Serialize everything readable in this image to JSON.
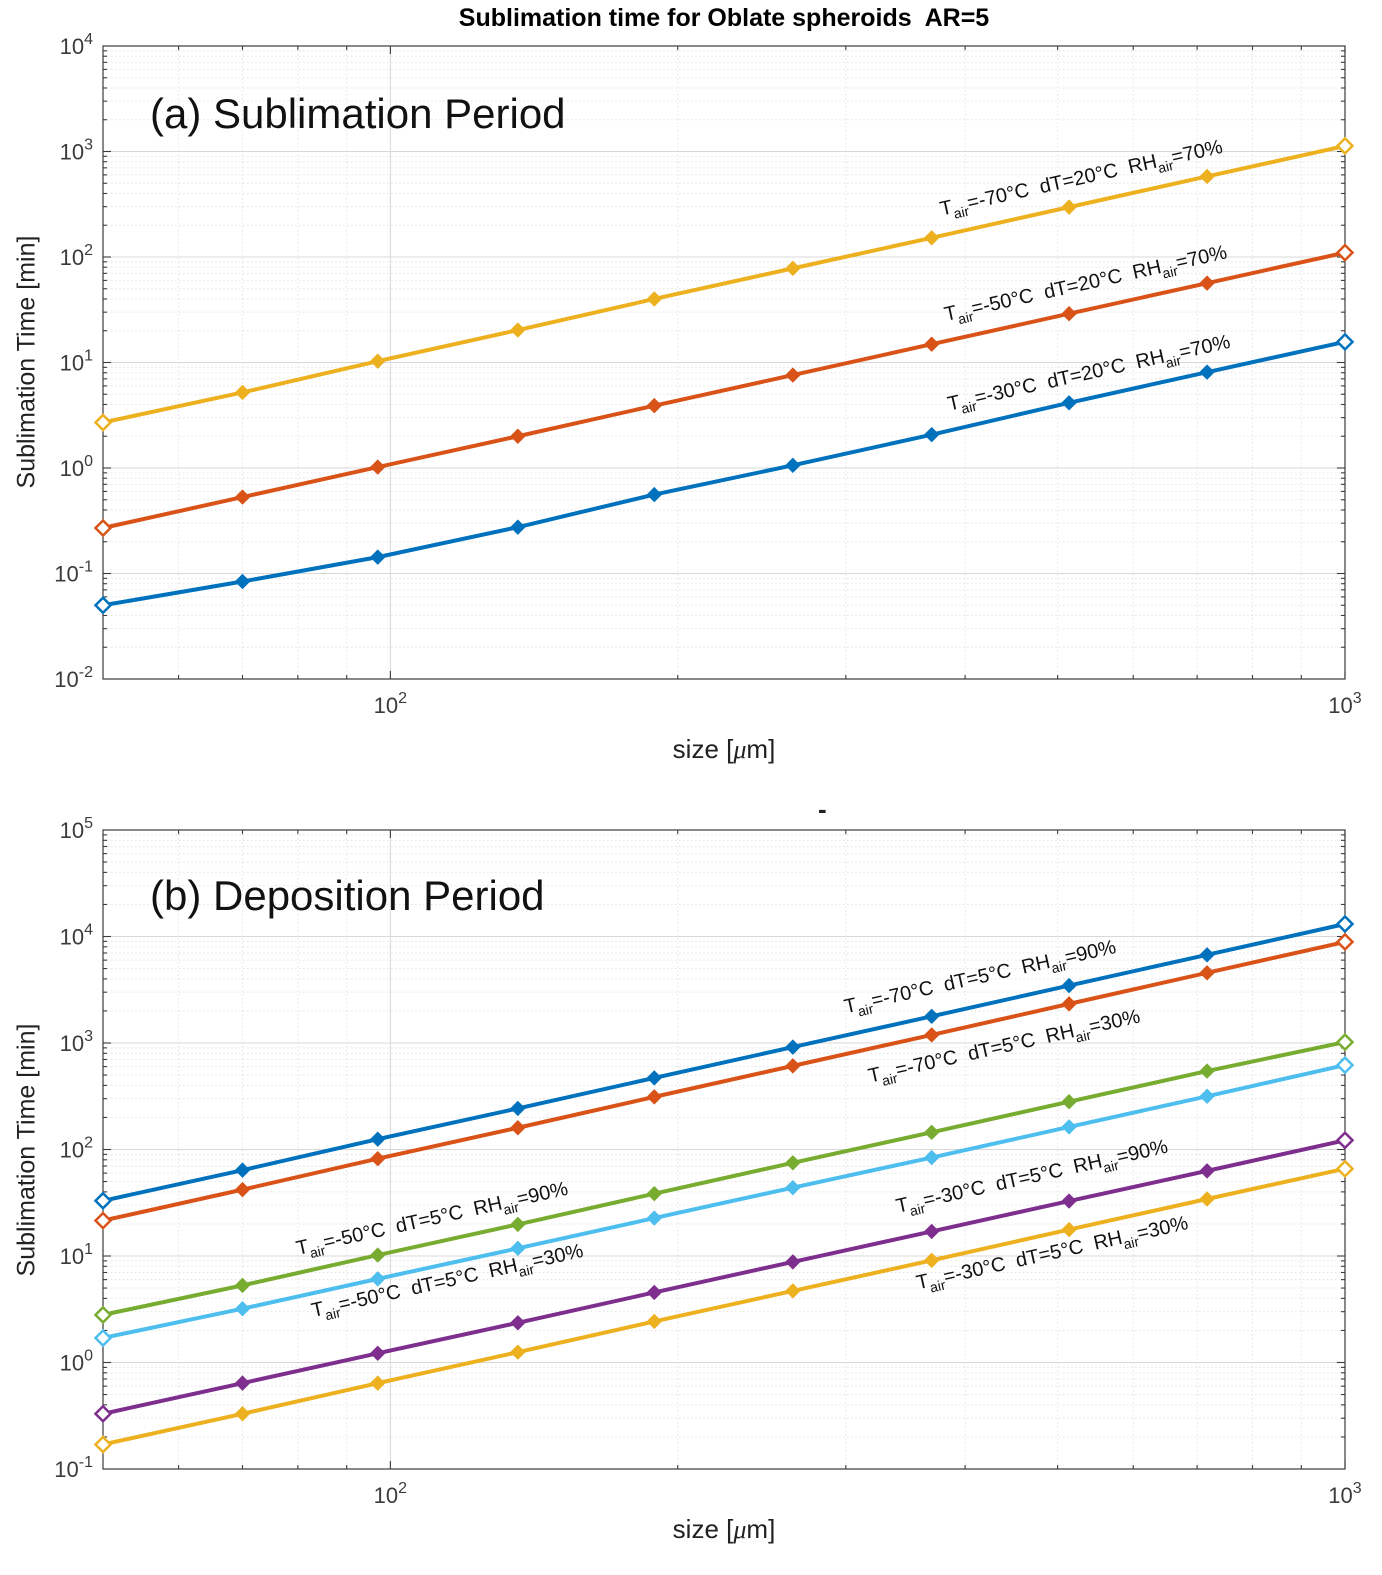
{
  "figure": {
    "title": "Sublimation time for Oblate spheroids  AR=5",
    "stray_mark": "-"
  },
  "chart_data": [
    {
      "type": "line",
      "panel_label": "(a) Sublimation Period",
      "title": "Sublimation time for Oblate spheroids  AR=5",
      "xlabel": "size [μm]",
      "ylabel": "Sublimation Time [min]",
      "x_scale": "log",
      "y_scale": "log",
      "xlim": [
        50,
        1000
      ],
      "ylim": [
        0.01,
        10000
      ],
      "x_tick_exponents": [
        2,
        3
      ],
      "y_tick_exponents": [
        4,
        3,
        2,
        1,
        0,
        -1,
        -2
      ],
      "grid": "major solid + minor dotted, box on, ticks in",
      "x": [
        50,
        70,
        97,
        136,
        189,
        264,
        369,
        514,
        717,
        1000
      ],
      "series": [
        {
          "label": "T_{air}=-70°C  dT=20°C  RH_{air}=70%",
          "color": "#EDB120",
          "values": [
            2.7,
            5.2,
            10.3,
            20.3,
            40,
            78,
            152,
            297,
            580,
            1130
          ],
          "label_at_x": 378,
          "label_offset": -20
        },
        {
          "label": "T_{air}=-50°C  dT=20°C  RH_{air}=70%",
          "color": "#D95319",
          "values": [
            0.27,
            0.53,
            1.02,
            2.0,
            3.9,
            7.6,
            14.9,
            29,
            56.5,
            110
          ],
          "label_at_x": 382,
          "label_offset": -20
        },
        {
          "label": "T_{air}=-30°C  dT=20°C  RH_{air}=70%",
          "color": "#0072BD",
          "values": [
            0.05,
            0.084,
            0.143,
            0.275,
            0.56,
            1.06,
            2.07,
            4.15,
            8.1,
            15.7
          ],
          "label_at_x": 385,
          "label_offset": -20
        }
      ]
    },
    {
      "type": "line",
      "panel_label": "(b) Deposition Period",
      "xlabel": "size [μm]",
      "ylabel": "Sublimation Time [min]",
      "x_scale": "log",
      "y_scale": "log",
      "xlim": [
        50,
        1000
      ],
      "ylim": [
        0.1,
        100000
      ],
      "x_tick_exponents": [
        2,
        3
      ],
      "y_tick_exponents": [
        5,
        4,
        3,
        2,
        1,
        0,
        -1
      ],
      "grid": "major solid + minor dotted, box on, ticks in",
      "x": [
        50,
        70,
        97,
        136,
        189,
        264,
        369,
        514,
        717,
        1000
      ],
      "series": [
        {
          "label": "T_{air}=-70°C  dT=5°C  RH_{air}=90%",
          "color": "#0072BD",
          "values": [
            33,
            64,
            125,
            243,
            470,
            915,
            1780,
            3460,
            6730,
            13100
          ],
          "label_at_x": 300,
          "label_offset": -22
        },
        {
          "label": "T_{air}=-70°C  dT=5°C  RH_{air}=30%",
          "color": "#D95319",
          "values": [
            21.5,
            42,
            82,
            160,
            312,
            610,
            1190,
            2330,
            4560,
            8900
          ],
          "label_at_x": 318,
          "label_offset": 34
        },
        {
          "label": "T_{air}=-50°C  dT=5°C  RH_{air}=90%",
          "color": "#77AC30",
          "values": [
            2.8,
            5.3,
            10.2,
            19.8,
            38.5,
            75,
            145,
            281,
            545,
            1020
          ],
          "label_at_x": 80,
          "label_offset": -18
        },
        {
          "label": "T_{air}=-50°C  dT=5°C  RH_{air}=30%",
          "color": "#4DBEEE",
          "values": [
            1.7,
            3.2,
            6.1,
            11.8,
            22.7,
            43.8,
            84,
            163,
            316,
            620
          ],
          "label_at_x": 83,
          "label_offset": 24
        },
        {
          "label": "T_{air}=-30°C  dT=5°C  RH_{air}=90%",
          "color": "#7E2F8E",
          "values": [
            0.33,
            0.64,
            1.22,
            2.36,
            4.55,
            8.8,
            17,
            32.8,
            63,
            122
          ],
          "label_at_x": 340,
          "label_offset": -26
        },
        {
          "label": "T_{air}=-30°C  dT=5°C  RH_{air}=30%",
          "color": "#EDB120",
          "values": [
            0.17,
            0.33,
            0.64,
            1.25,
            2.43,
            4.7,
            9.1,
            17.7,
            34.3,
            66
          ],
          "label_at_x": 357,
          "label_offset": 26
        }
      ]
    }
  ]
}
